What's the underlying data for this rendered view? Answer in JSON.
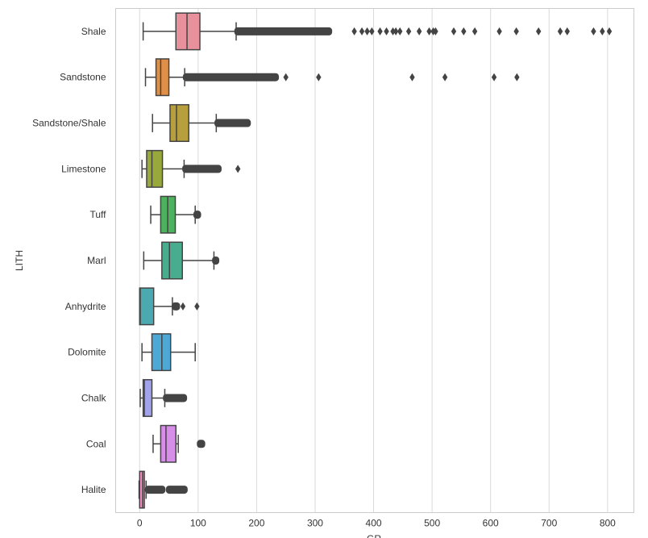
{
  "chart_data": {
    "type": "boxplot",
    "orientation": "horizontal",
    "title": "",
    "xlabel": "GR",
    "ylabel": "LITH",
    "xlim": [
      -41,
      845
    ],
    "xticks": [
      0,
      100,
      200,
      300,
      400,
      500,
      600,
      700,
      800
    ],
    "grid": "vertical",
    "categories": [
      "Shale",
      "Sandstone",
      "Sandstone/Shale",
      "Limestone",
      "Tuff",
      "Marl",
      "Anhydrite",
      "Dolomite",
      "Chalk",
      "Coal",
      "Halite"
    ],
    "series": [
      {
        "name": "Shale",
        "color": "#e8919c",
        "whislo": 6,
        "q1": 62,
        "median": 81,
        "q3": 103,
        "whishi": 165,
        "outlier_ranges": [
          [
            166,
            325
          ]
        ],
        "outliers": [
          367,
          380,
          389,
          397,
          411,
          422,
          433,
          438,
          445,
          460,
          478,
          495,
          502,
          506,
          537,
          554,
          573,
          615,
          644,
          682,
          719,
          731,
          776,
          791,
          803
        ]
      },
      {
        "name": "Sandstone",
        "color": "#e08f46",
        "whislo": 10,
        "q1": 28,
        "median": 36,
        "q3": 50,
        "whishi": 77,
        "outlier_ranges": [
          [
            78,
            234
          ]
        ],
        "outliers": [
          250,
          306,
          466,
          522,
          606,
          645
        ]
      },
      {
        "name": "Sandstone/Shale",
        "color": "#b79f3e",
        "whislo": 22,
        "q1": 52,
        "median": 63,
        "q3": 84,
        "whishi": 131,
        "outlier_ranges": [
          [
            132,
            186
          ]
        ],
        "outliers": []
      },
      {
        "name": "Limestone",
        "color": "#98a83a",
        "whislo": 4,
        "q1": 12,
        "median": 21,
        "q3": 39,
        "whishi": 76,
        "outlier_ranges": [
          [
            77,
            136
          ]
        ],
        "outliers": [
          168
        ]
      },
      {
        "name": "Tuff",
        "color": "#4db25e",
        "whislo": 19,
        "q1": 36,
        "median": 48,
        "q3": 61,
        "whishi": 95,
        "outlier_ranges": [
          [
            96,
            101
          ]
        ],
        "outliers": []
      },
      {
        "name": "Marl",
        "color": "#48ad8f",
        "whislo": 7,
        "q1": 38,
        "median": 51,
        "q3": 73,
        "whishi": 127,
        "outlier_ranges": [
          [
            128,
            132
          ]
        ],
        "outliers": []
      },
      {
        "name": "Anhydrite",
        "color": "#4aaab0",
        "whislo": 0,
        "q1": 0,
        "median": 1,
        "q3": 24,
        "whishi": 56,
        "outlier_ranges": [
          [
            59,
            65
          ]
        ],
        "outliers": [
          74,
          98
        ]
      },
      {
        "name": "Dolomite",
        "color": "#4ea8d6",
        "whislo": 4,
        "q1": 21,
        "median": 38,
        "q3": 53,
        "whishi": 95,
        "outlier_ranges": [],
        "outliers": []
      },
      {
        "name": "Chalk",
        "color": "#a3a3eb",
        "whislo": 1,
        "q1": 6,
        "median": 8,
        "q3": 21,
        "whishi": 43,
        "outlier_ranges": [
          [
            44,
            77
          ]
        ],
        "outliers": []
      },
      {
        "name": "Coal",
        "color": "#d68ee8",
        "whislo": 23,
        "q1": 36,
        "median": 45,
        "q3": 62,
        "whishi": 66,
        "outlier_ranges": [
          [
            102,
            108
          ]
        ],
        "outliers": []
      },
      {
        "name": "Halite",
        "color": "#f18bc0",
        "whislo": -1,
        "q1": 0,
        "median": 5,
        "q3": 8,
        "whishi": 11,
        "outlier_ranges": [
          [
            13,
            40
          ],
          [
            49,
            78
          ]
        ],
        "outliers": []
      }
    ]
  }
}
